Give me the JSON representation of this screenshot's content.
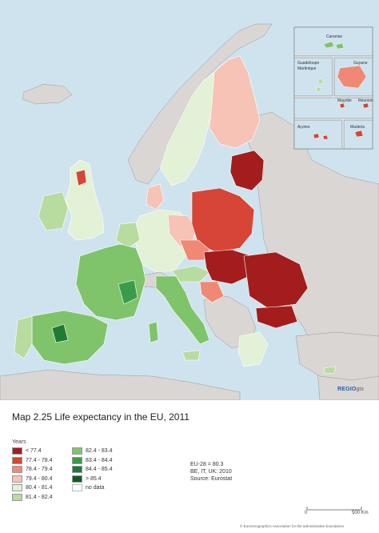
{
  "title": "Map 2.25 Life expectancy in the EU, 2011",
  "legend": {
    "title": "Years",
    "items": [
      {
        "label": "< 77.4",
        "color": "#a31d1d"
      },
      {
        "label": "77.4 - 78.4",
        "color": "#d64535"
      },
      {
        "label": "78.4 - 79.4",
        "color": "#ef8874"
      },
      {
        "label": "79.4 - 80.4",
        "color": "#f6c3b6"
      },
      {
        "label": "80.4 - 81.4",
        "color": "#e3f1d6"
      },
      {
        "label": "81.4 - 82.4",
        "color": "#b8dba0"
      },
      {
        "label": "82.4 - 83.4",
        "color": "#7fc46a"
      },
      {
        "label": "83.4 - 84.4",
        "color": "#3a9c4a"
      },
      {
        "label": "84.4 - 85.4",
        "color": "#1f7a36"
      },
      {
        "label": "> 85.4",
        "color": "#0e5a25"
      },
      {
        "label": "no data",
        "color": "#ffffff"
      }
    ]
  },
  "notes": [
    "EU-28 = 80.3",
    "BE, IT, UK: 2010",
    "Source: Eurostat"
  ],
  "insets": [
    "Canarias",
    "Guadeloupe",
    "Martinique",
    "Guyane",
    "Mayotte",
    "Réunion",
    "Açores",
    "Madeira"
  ],
  "scale": {
    "left_label": "0",
    "right_label": "500 Km"
  },
  "logo": {
    "brand": "REGIO",
    "suffix": "gis"
  },
  "footer": "© EuroGeographics Association for the administrative boundaries",
  "colors": {
    "sea": "#cfe3ef",
    "non_eu": "#d9d6d3",
    "border": "#ffffff"
  }
}
